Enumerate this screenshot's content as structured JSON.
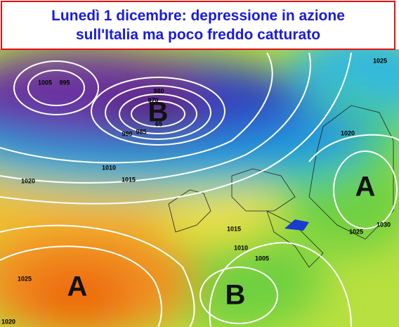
{
  "title": [
    "Lunedì 1 dicembre: depressione in azione",
    "sull'Italia ma poco freddo catturato"
  ],
  "isobar_labels": [
    "1025",
    "1005",
    "995",
    "980",
    "970",
    "65",
    "990",
    "985",
    "1010",
    "1015",
    "1020",
    "1020",
    "1015",
    "1025",
    "1030",
    "1010",
    "1005",
    "1025",
    "1020"
  ],
  "pressure_centers": [
    "B",
    "A",
    "A",
    "B"
  ]
}
